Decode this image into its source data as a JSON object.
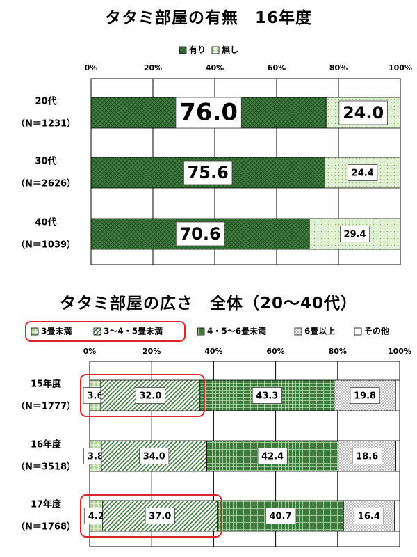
{
  "chart_data": [
    {
      "type": "bar",
      "title": "タタミ部屋の有無　16年度",
      "stacked": true,
      "orientation": "horizontal",
      "xlim": [
        0,
        100
      ],
      "ticks": [
        "0%",
        "20%",
        "40%",
        "60%",
        "80%",
        "100%"
      ],
      "categories": [
        {
          "line1": "20代",
          "line2": "（N＝1231）"
        },
        {
          "line1": "30代",
          "line2": "（N＝2626）"
        },
        {
          "line1": "40代",
          "line2": "（N＝1039）"
        }
      ],
      "series": [
        {
          "name": "有り",
          "values": [
            76.0,
            75.6,
            70.6
          ]
        },
        {
          "name": "無し",
          "values": [
            24.0,
            24.4,
            29.4
          ]
        }
      ],
      "legend_position": "top",
      "grid": true
    },
    {
      "type": "bar",
      "title": "タタミ部屋の広さ　全体（20～40代）",
      "stacked": true,
      "orientation": "horizontal",
      "xlim": [
        0,
        100
      ],
      "ticks": [
        "0%",
        "20%",
        "40%",
        "60%",
        "80%",
        "100%"
      ],
      "categories": [
        {
          "line1": "15年度",
          "line2": "（N＝1777）"
        },
        {
          "line1": "16年度",
          "line2": "（N＝3518）"
        },
        {
          "line1": "17年度",
          "line2": "（N＝1768）"
        }
      ],
      "series": [
        {
          "name": "3畳未満",
          "values": [
            3.6,
            3.8,
            4.2
          ]
        },
        {
          "name": "3～4・5畳未満",
          "values": [
            32.0,
            34.0,
            37.0
          ]
        },
        {
          "name": "4・5～6畳未満",
          "values": [
            43.3,
            42.4,
            40.7
          ]
        },
        {
          "name": "6畳以上",
          "values": [
            19.8,
            18.6,
            16.4
          ]
        },
        {
          "name": "その他",
          "values": [
            1.3,
            1.2,
            1.7
          ]
        }
      ],
      "legend_position": "top",
      "grid": true,
      "highlighted_rows": [
        0,
        2
      ]
    }
  ],
  "colors": {
    "dark_green": "#3d7b3d",
    "light_green": "#a9d08e",
    "dot_gray": "#9e9e9e",
    "highlight_red": "#d9262b"
  }
}
